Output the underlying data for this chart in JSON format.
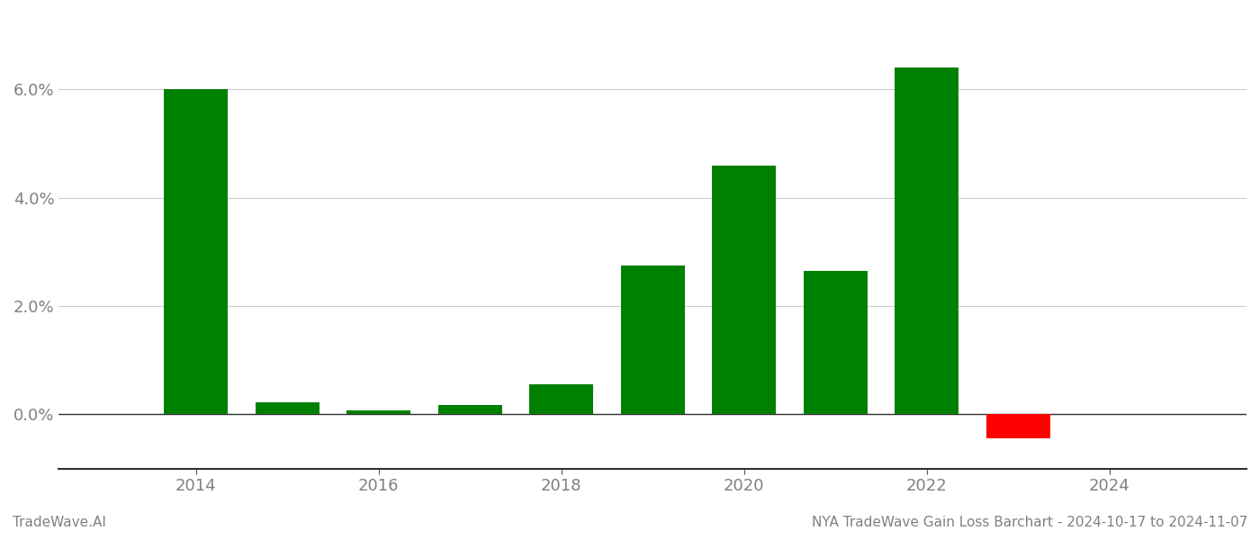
{
  "years": [
    2014,
    2015,
    2016,
    2017,
    2018,
    2019,
    2020,
    2021,
    2022,
    2023
  ],
  "values": [
    0.0601,
    0.0022,
    0.0008,
    0.0018,
    0.0055,
    0.0275,
    0.046,
    0.0265,
    0.064,
    -0.0045
  ],
  "bar_colors": [
    "#008000",
    "#008000",
    "#008000",
    "#008000",
    "#008000",
    "#008000",
    "#008000",
    "#008000",
    "#008000",
    "#ff0000"
  ],
  "yticks": [
    0.0,
    0.02,
    0.04,
    0.06
  ],
  "xtick_labels": [
    "2014",
    "2016",
    "2018",
    "2020",
    "2022",
    "2024"
  ],
  "xtick_positions": [
    2014,
    2016,
    2018,
    2020,
    2022,
    2024
  ],
  "xlim": [
    2012.5,
    2025.5
  ],
  "ylim": [
    -0.01,
    0.074
  ],
  "footer_left": "TradeWave.AI",
  "footer_right": "NYA TradeWave Gain Loss Barchart - 2024-10-17 to 2024-11-07",
  "background_color": "#ffffff",
  "bar_width": 0.7,
  "grid_color": "#cccccc",
  "text_color": "#808080",
  "footer_fontsize": 11,
  "tick_fontsize": 13
}
